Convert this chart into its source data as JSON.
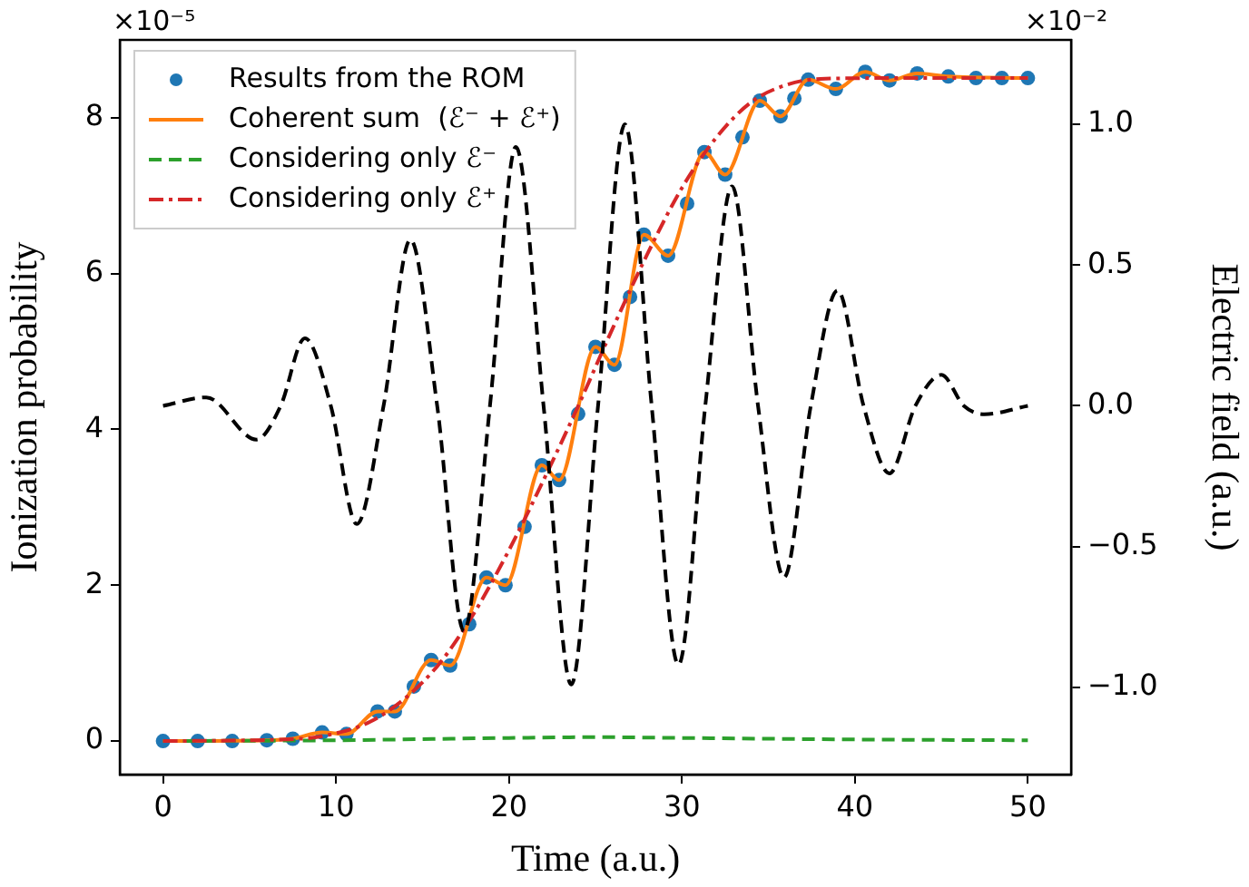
{
  "chart_data": {
    "type": "line",
    "xlabel": "Time (a.u.)",
    "ylabel": "Ionization probability",
    "y2label": "Electric field (a.u.)",
    "annotations": [
      "×10⁻⁵",
      "×10⁻²"
    ],
    "xlim": [
      -2.5,
      52.5
    ],
    "xticks": [
      0,
      10,
      20,
      30,
      40,
      50
    ],
    "ylim": [
      -0.43,
      9.0
    ],
    "yticks": [
      0,
      2,
      4,
      6,
      8
    ],
    "y2lim": [
      -1.31,
      1.3
    ],
    "y2ticks": [
      {
        "value": -1,
        "label": "−1.0"
      },
      {
        "value": -0.5,
        "label": "−0.5"
      },
      {
        "value": 0,
        "label": "0.0"
      },
      {
        "value": 0.5,
        "label": "0.5"
      },
      {
        "value": 1,
        "label": "1.0"
      }
    ],
    "grid": false,
    "legend": "top left",
    "series": [
      {
        "name": "Results from the ROM",
        "type": "scatter",
        "marker": "circle",
        "color": "#1f77b4",
        "x": [
          0,
          2,
          4,
          6,
          7.5,
          9.2,
          10.6,
          12.4,
          13.4,
          14.5,
          15.5,
          16.6,
          17.7,
          18.7,
          19.8,
          20.9,
          21.9,
          22.9,
          24.0,
          25.0,
          26.1,
          27.0,
          27.8,
          29.2,
          30.3,
          31.3,
          32.5,
          33.5,
          34.5,
          35.7,
          36.5,
          37.3,
          38.9,
          40.6,
          42.0,
          43.6,
          45.4,
          47,
          48.5,
          50
        ],
        "values": [
          0,
          0,
          0,
          0.01,
          0.03,
          0.11,
          0.09,
          0.38,
          0.38,
          0.7,
          1.04,
          0.97,
          1.5,
          2.1,
          2.0,
          2.75,
          3.54,
          3.35,
          4.2,
          5.06,
          4.83,
          5.7,
          6.5,
          6.23,
          6.9,
          7.56,
          7.27,
          7.75,
          8.22,
          8.02,
          8.25,
          8.49,
          8.37,
          8.59,
          8.48,
          8.57,
          8.53,
          8.51,
          8.51,
          8.51
        ]
      },
      {
        "name": "Coherent sum  (ℰ⁻ + ℰ⁺)",
        "line_style": "solid",
        "color": "#ff7f0e",
        "x": [
          0,
          6,
          7.5,
          9.2,
          10.6,
          12.4,
          13.4,
          15.5,
          16.6,
          18.7,
          19.8,
          21.9,
          22.9,
          25.0,
          26.1,
          27.8,
          29.2,
          31.3,
          32.5,
          34.5,
          35.7,
          37.3,
          38.9,
          40.6,
          42.0,
          43.6,
          45.4,
          50
        ],
        "values": [
          0,
          0.01,
          0.03,
          0.11,
          0.09,
          0.38,
          0.38,
          1.04,
          0.97,
          2.1,
          2.0,
          3.54,
          3.35,
          5.06,
          4.83,
          6.5,
          6.23,
          7.56,
          7.27,
          8.22,
          8.02,
          8.49,
          8.37,
          8.59,
          8.48,
          8.57,
          8.53,
          8.51
        ]
      },
      {
        "name": "Considering only ℰ⁻",
        "line_style": "dashed",
        "color": "#2ca02c",
        "x": [
          0,
          10,
          20,
          25,
          30,
          40,
          50
        ],
        "values": [
          0,
          0.01,
          0.04,
          0.05,
          0.04,
          0.02,
          0.01
        ]
      },
      {
        "name": "Considering only ℰ⁺",
        "line_style": "dashdot",
        "color": "#d62728",
        "x": [
          0,
          8,
          10,
          12,
          14,
          16,
          18,
          20,
          22,
          24,
          26,
          28,
          30,
          32,
          34,
          36,
          38,
          42,
          50
        ],
        "values": [
          0,
          0.03,
          0.1,
          0.25,
          0.55,
          1.0,
          1.65,
          2.45,
          3.35,
          4.3,
          5.3,
          6.25,
          7.1,
          7.75,
          8.2,
          8.42,
          8.5,
          8.51,
          8.51
        ]
      },
      {
        "axis": "y2",
        "line_style": "dashed",
        "color": "#000000",
        "x": [
          0,
          2.5,
          5.4,
          6.8,
          8.2,
          9.7,
          11.2,
          12.75,
          14.3,
          15.85,
          17.4,
          18.9,
          20.4,
          22.0,
          23.6,
          25.15,
          26.7,
          28.25,
          29.8,
          31.35,
          32.9,
          34.4,
          35.9,
          37.45,
          39.0,
          40.5,
          42.0,
          43.5,
          45.0,
          46.3,
          47.5,
          50
        ],
        "values": [
          0,
          0.03,
          -0.12,
          0,
          0.24,
          0,
          -0.42,
          0,
          0.59,
          0,
          -0.8,
          0,
          0.92,
          0,
          -0.99,
          0,
          1.0,
          0,
          -0.92,
          0,
          0.78,
          0,
          -0.61,
          0,
          0.41,
          0,
          -0.24,
          0,
          0.11,
          0,
          -0.03,
          0
        ]
      }
    ]
  }
}
